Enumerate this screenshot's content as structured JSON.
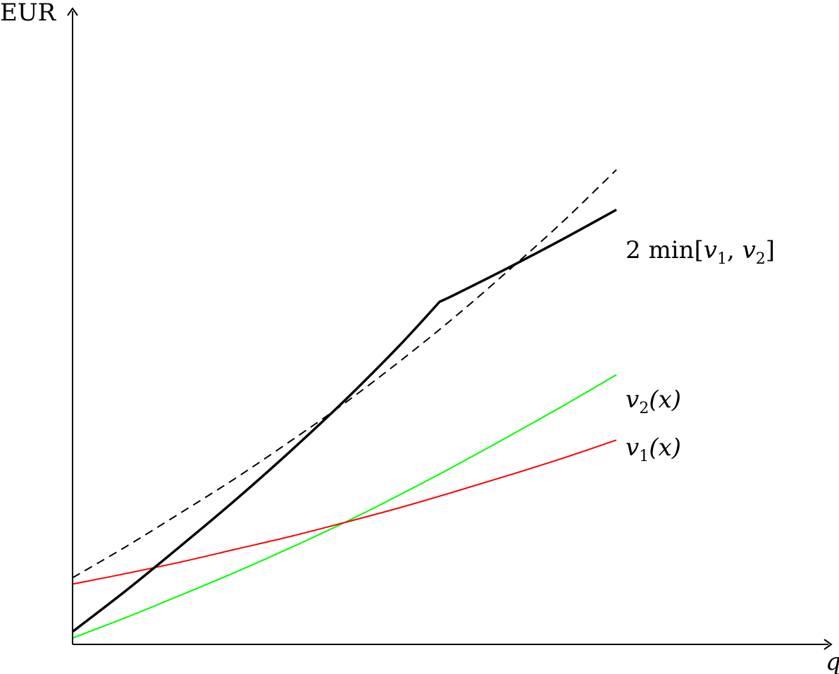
{
  "chart_data": {
    "type": "line",
    "title": "",
    "xlabel": "q",
    "ylabel": "EUR",
    "xlim": [
      0,
      10
    ],
    "ylim": [
      0,
      10
    ],
    "grid": false,
    "legend": "none",
    "series": [
      {
        "name": "v_1(x)",
        "color": "#ff0000",
        "x": [
          0,
          1,
          2,
          3,
          4,
          5,
          6,
          7,
          8,
          9,
          10
        ],
        "y": [
          0.95,
          1.12,
          1.3,
          1.5,
          1.7,
          1.92,
          2.15,
          2.4,
          2.66,
          2.93,
          3.22
        ]
      },
      {
        "name": "v_2(x)",
        "color": "#00ff00",
        "x": [
          0,
          1,
          2,
          3,
          4,
          5,
          6,
          7,
          8,
          9,
          10
        ],
        "y": [
          0.1,
          0.43,
          0.78,
          1.14,
          1.52,
          1.92,
          2.35,
          2.8,
          3.27,
          3.75,
          4.25
        ]
      },
      {
        "name": "2 min[v_1, v_2]",
        "color": "#000000",
        "x": [
          0,
          1,
          2,
          3,
          4,
          5,
          6,
          6.75,
          7,
          8,
          9,
          10
        ],
        "y": [
          0.2,
          0.86,
          1.56,
          2.28,
          3.04,
          3.84,
          4.7,
          5.4,
          5.5,
          5.93,
          6.38,
          6.85
        ]
      },
      {
        "name": "",
        "color": "#000000",
        "dashed": true,
        "x": [
          0,
          1,
          2,
          3,
          4,
          5,
          6,
          7,
          8,
          9,
          10
        ],
        "y": [
          1.05,
          1.55,
          2.08,
          2.62,
          3.2,
          3.8,
          4.45,
          5.14,
          5.88,
          6.65,
          7.48
        ]
      }
    ],
    "labels": {
      "black": {
        "main": "2 min[",
        "v": "v",
        "s1": "1",
        "comma": ", ",
        "s2": "2",
        "close": "]"
      },
      "green": {
        "v": "v",
        "sub": "2",
        "args": "(x)"
      },
      "red": {
        "v": "v",
        "sub": "1",
        "args": "(x)"
      }
    }
  }
}
